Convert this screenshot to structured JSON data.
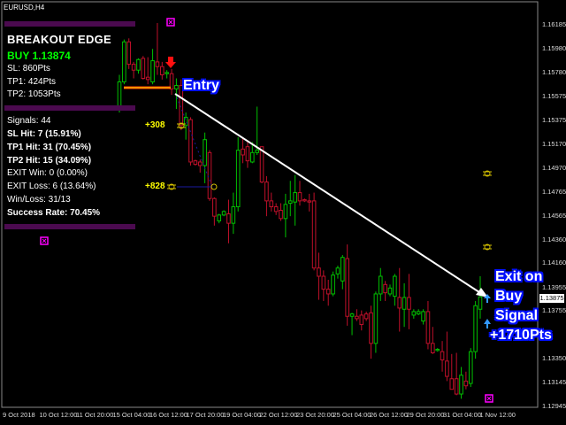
{
  "symbol_label": "EURUSD,H4",
  "panel": {
    "title": "BREAKOUT EDGE",
    "signal": "BUY 1.13874",
    "sl": "SL: 860Pts",
    "tp1": "TP1: 424Pts",
    "tp2": "TP2: 1053Pts",
    "signals": "Signals: 44",
    "sl_hit": "SL Hit: 7 (15.91%)",
    "tp1_hit": "TP1 Hit: 31 (70.45%)",
    "tp2_hit": "TP2 Hit: 15 (34.09%)",
    "exit_win": "EXIT Win: 0 (0.00%)",
    "exit_loss": "EXIT Loss: 6 (13.64%)",
    "win_loss": "Win/Loss: 31/13",
    "success_rate": "Success Rate: 70.45%"
  },
  "annotations": {
    "entry": "Entry",
    "exit_line1": "Exit on",
    "exit_line2": "Buy",
    "exit_line3": "Signal",
    "exit_line4": "+1710Pts",
    "tp1_points": "+308",
    "tp2_points": "+828"
  },
  "current_price": "1.13875",
  "colors": {
    "bull": "#00c000",
    "bear": "#c0102a",
    "panel_bar": "#4b0a4f",
    "accent_text": "#ffff00",
    "signal_marker": "#ff00ff",
    "exit_arrow": "#3399ff"
  },
  "chart_data": {
    "type": "candlestick",
    "timeframe": "H4",
    "ylim": [
      1.12945,
      1.16185
    ],
    "y_ticks": [
      "1.16185",
      "1.15980",
      "1.15780",
      "1.15575",
      "1.15375",
      "1.15170",
      "1.14970",
      "1.14765",
      "1.14565",
      "1.14360",
      "1.14160",
      "1.13955",
      "1.13755",
      "1.13350",
      "1.13145",
      "1.12945"
    ],
    "x_ticks": [
      "9 Oct 2018",
      "10 Oct 12:00",
      "11 Oct 20:00",
      "15 Oct 04:00",
      "16 Oct 12:00",
      "17 Oct 20:00",
      "19 Oct 04:00",
      "22 Oct 12:00",
      "23 Oct 20:00",
      "25 Oct 04:00",
      "26 Oct 12:00",
      "29 Oct 20:00",
      "31 Oct 04:00",
      "1 Nov 12:00"
    ],
    "grid": false,
    "entry_price": 1.1565,
    "ohlc": [
      [
        1.1549,
        1.1576,
        1.1544,
        1.157
      ],
      [
        1.157,
        1.1606,
        1.1568,
        1.1604
      ],
      [
        1.1604,
        1.1607,
        1.1581,
        1.1585
      ],
      [
        1.1585,
        1.1587,
        1.1573,
        1.158
      ],
      [
        1.158,
        1.159,
        1.1577,
        1.1589
      ],
      [
        1.159,
        1.1592,
        1.1572,
        1.1573
      ],
      [
        1.1574,
        1.1591,
        1.1568,
        1.1572
      ],
      [
        1.157,
        1.1598,
        1.1568,
        1.1588
      ],
      [
        1.1587,
        1.162,
        1.1576,
        1.1583
      ],
      [
        1.1583,
        1.1587,
        1.1572,
        1.1576
      ],
      [
        1.1577,
        1.158,
        1.1573,
        1.1578
      ],
      [
        1.1577,
        1.1581,
        1.1559,
        1.1564
      ],
      [
        1.1564,
        1.1573,
        1.1547,
        1.1567
      ],
      [
        1.1567,
        1.1572,
        1.1529,
        1.1533
      ],
      [
        1.1533,
        1.1544,
        1.1521,
        1.154
      ],
      [
        1.1538,
        1.154,
        1.1499,
        1.1502
      ],
      [
        1.1503,
        1.1504,
        1.1499,
        1.15
      ],
      [
        1.1502,
        1.1504,
        1.1493,
        1.1499
      ],
      [
        1.1499,
        1.1527,
        1.1484,
        1.1521
      ],
      [
        1.151,
        1.1512,
        1.1469,
        1.1471
      ],
      [
        1.1471,
        1.1472,
        1.1448,
        1.1456
      ],
      [
        1.1452,
        1.1458,
        1.145,
        1.1457
      ],
      [
        1.1457,
        1.1461,
        1.1456,
        1.146
      ],
      [
        1.1458,
        1.147,
        1.1433,
        1.145
      ],
      [
        1.145,
        1.1476,
        1.1441,
        1.1464
      ],
      [
        1.1464,
        1.1523,
        1.146,
        1.1512
      ],
      [
        1.1513,
        1.1523,
        1.1501,
        1.1508
      ],
      [
        1.1515,
        1.1519,
        1.1497,
        1.1503
      ],
      [
        1.1502,
        1.1519,
        1.1501,
        1.151
      ],
      [
        1.151,
        1.1549,
        1.1508,
        1.1512
      ],
      [
        1.1515,
        1.1515,
        1.1484,
        1.1485
      ],
      [
        1.1485,
        1.149,
        1.1456,
        1.1469
      ],
      [
        1.1469,
        1.1476,
        1.146,
        1.1464
      ],
      [
        1.1464,
        1.1467,
        1.1457,
        1.146
      ],
      [
        1.1461,
        1.1467,
        1.1452,
        1.1454
      ],
      [
        1.1454,
        1.1475,
        1.1438,
        1.1466
      ],
      [
        1.1467,
        1.1486,
        1.1456,
        1.1469
      ],
      [
        1.1468,
        1.1491,
        1.1448,
        1.1476
      ],
      [
        1.1476,
        1.1486,
        1.1465,
        1.1469
      ],
      [
        1.147,
        1.1471,
        1.1468,
        1.1469
      ],
      [
        1.1469,
        1.1475,
        1.146,
        1.1468
      ],
      [
        1.1469,
        1.1476,
        1.141,
        1.1412
      ],
      [
        1.1412,
        1.1425,
        1.1385,
        1.1405
      ],
      [
        1.1405,
        1.141,
        1.1384,
        1.1394
      ],
      [
        1.1394,
        1.1402,
        1.138,
        1.139
      ],
      [
        1.139,
        1.1409,
        1.1388,
        1.1406
      ],
      [
        1.1407,
        1.1414,
        1.1403,
        1.1412
      ],
      [
        1.1401,
        1.1423,
        1.1394,
        1.1421
      ],
      [
        1.142,
        1.1432,
        1.1363,
        1.1371
      ],
      [
        1.1371,
        1.1374,
        1.1355,
        1.1373
      ],
      [
        1.1371,
        1.1377,
        1.1367,
        1.1369
      ],
      [
        1.1372,
        1.1376,
        1.1359,
        1.1364
      ],
      [
        1.1373,
        1.1375,
        1.1367,
        1.1369
      ],
      [
        1.1374,
        1.138,
        1.1335,
        1.1348
      ],
      [
        1.1348,
        1.1392,
        1.134,
        1.139
      ],
      [
        1.139,
        1.1412,
        1.1384,
        1.1405
      ],
      [
        1.1398,
        1.1401,
        1.1384,
        1.1391
      ],
      [
        1.139,
        1.1398,
        1.1388,
        1.1395
      ],
      [
        1.1388,
        1.1407,
        1.138,
        1.1405
      ],
      [
        1.1387,
        1.1412,
        1.1358,
        1.1378
      ],
      [
        1.1377,
        1.1399,
        1.1362,
        1.1387
      ],
      [
        1.1387,
        1.1407,
        1.136,
        1.1377
      ],
      [
        1.1372,
        1.1377,
        1.1369,
        1.1375
      ],
      [
        1.1373,
        1.1377,
        1.1372,
        1.1375
      ],
      [
        1.1367,
        1.1377,
        1.1364,
        1.1375
      ],
      [
        1.1375,
        1.1384,
        1.1343,
        1.1348
      ],
      [
        1.1348,
        1.1362,
        1.1339,
        1.134
      ],
      [
        1.1342,
        1.1344,
        1.1341,
        1.1343
      ],
      [
        1.1341,
        1.135,
        1.1324,
        1.1334
      ],
      [
        1.1333,
        1.1358,
        1.1316,
        1.132
      ],
      [
        1.1318,
        1.1339,
        1.1309,
        1.1309
      ],
      [
        1.1318,
        1.134,
        1.1304,
        1.1305
      ],
      [
        1.1305,
        1.1328,
        1.1301,
        1.1321
      ],
      [
        1.1316,
        1.1324,
        1.1309,
        1.1312
      ],
      [
        1.1314,
        1.1344,
        1.1311,
        1.1341
      ],
      [
        1.1341,
        1.1384,
        1.1335,
        1.138
      ],
      [
        1.1377,
        1.1405,
        1.1369,
        1.13875
      ]
    ]
  }
}
